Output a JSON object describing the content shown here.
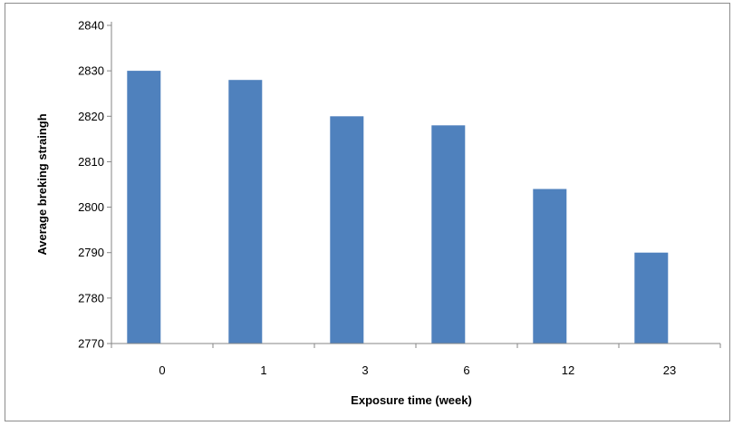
{
  "chart_data": {
    "type": "bar",
    "title": "",
    "xlabel": "Exposure time (week)",
    "ylabel": "Average breking straingh",
    "categories": [
      "0",
      "1",
      "3",
      "6",
      "12",
      "23"
    ],
    "values": [
      2830,
      2828,
      2820,
      2818,
      2804,
      2790
    ],
    "ylim": [
      2770,
      2840
    ],
    "yticks": [
      2770,
      2780,
      2790,
      2800,
      2810,
      2820,
      2830,
      2840
    ],
    "grid": false,
    "legend": "none",
    "bar_color": "#4F81BD",
    "axis_color": "#868686"
  }
}
